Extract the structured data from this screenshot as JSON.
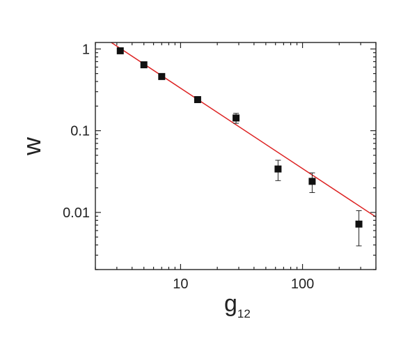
{
  "chart_data": {
    "type": "scatter",
    "xlabel": "g",
    "xlabel_subscript": "12",
    "ylabel": "w",
    "x_scale": "log",
    "y_scale": "log",
    "xlim": [
      2,
      400
    ],
    "ylim": [
      0.002,
      1.2
    ],
    "x_ticks": [
      {
        "value": 10,
        "label": "10"
      },
      {
        "value": 100,
        "label": "100"
      }
    ],
    "y_ticks": [
      {
        "value": 0.01,
        "label": "0.01"
      },
      {
        "value": 0.1,
        "label": "0.1"
      },
      {
        "value": 1,
        "label": "1"
      }
    ],
    "grid": false,
    "series": [
      {
        "kind": "points",
        "marker": "square",
        "color": "#111111",
        "points": [
          {
            "x": 3.2,
            "y": 0.95,
            "err": 0.02
          },
          {
            "x": 5.0,
            "y": 0.64,
            "err": 0.02
          },
          {
            "x": 7.0,
            "y": 0.46,
            "err": 0.015
          },
          {
            "x": 13.8,
            "y": 0.24,
            "err": 0.012
          },
          {
            "x": 28.5,
            "y": 0.143,
            "err": 0.02
          },
          {
            "x": 63,
            "y": 0.034,
            "err": 0.0095
          },
          {
            "x": 120,
            "y": 0.024,
            "err": 0.0065
          },
          {
            "x": 290,
            "y": 0.0072,
            "err": 0.0033
          }
        ]
      },
      {
        "kind": "fit-line",
        "color": "#dd2222",
        "points": [
          {
            "x": 2.7,
            "y": 1.2
          },
          {
            "x": 400,
            "y": 0.0088
          }
        ]
      }
    ]
  }
}
